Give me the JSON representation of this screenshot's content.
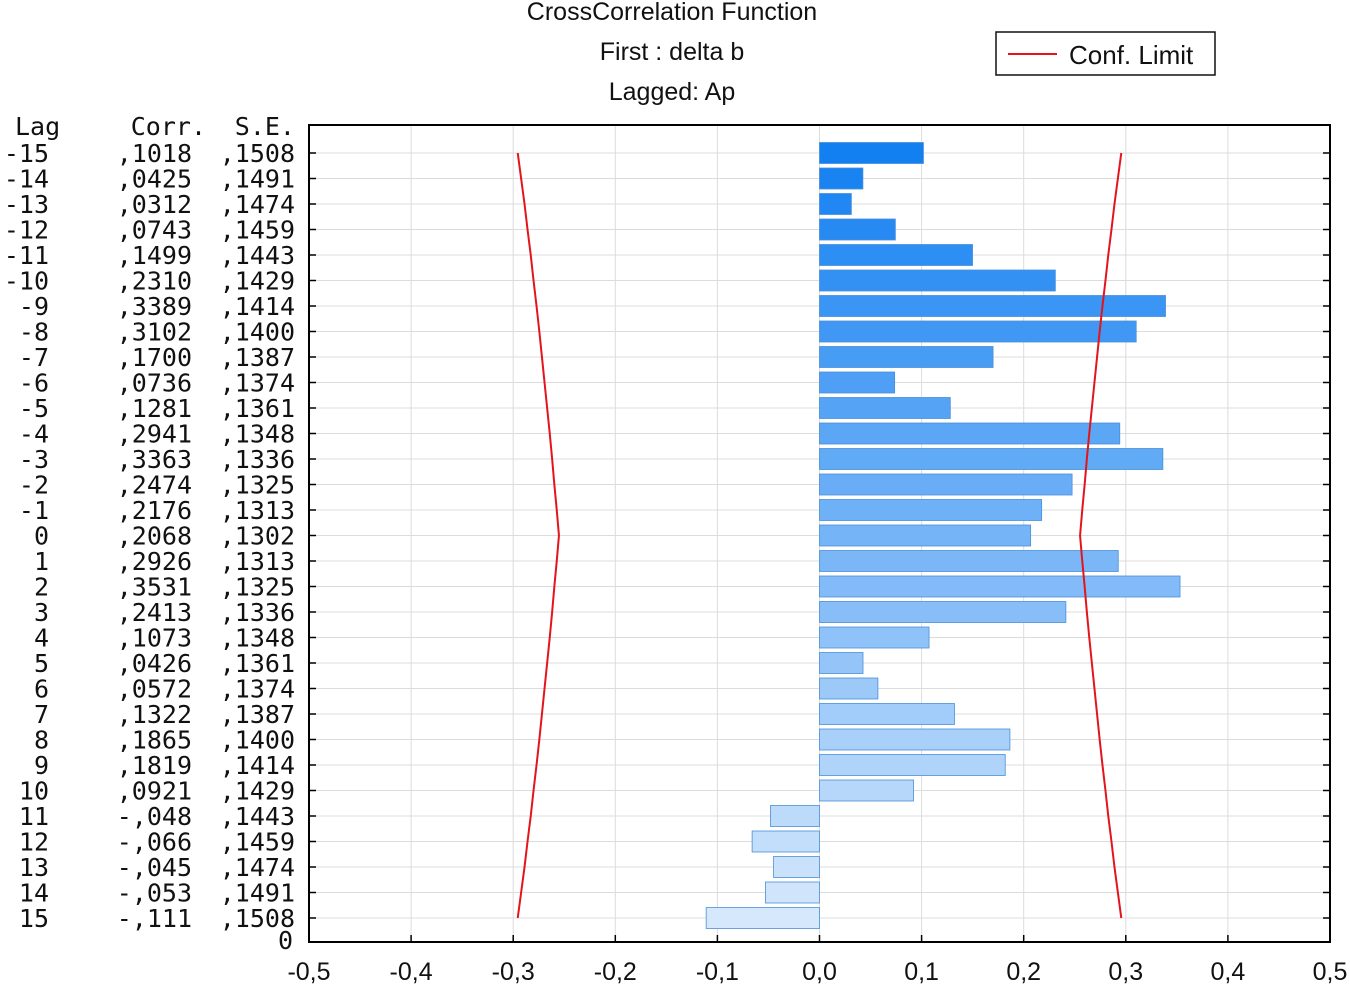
{
  "chart_data": {
    "type": "bar",
    "orientation": "horizontal",
    "title": "CrossCorrelation Function",
    "subtitle_first": "First : delta b",
    "subtitle_lagged": "Lagged: Ap",
    "table_headers": {
      "lag": "Lag",
      "corr": "Corr.",
      "se": "S.E."
    },
    "extra_row_label": "0",
    "rows": [
      {
        "lag": -15,
        "lag_label": "-15",
        "corr": 0.1018,
        "corr_label": ",1018",
        "se": 0.1508,
        "se_label": ",1508"
      },
      {
        "lag": -14,
        "lag_label": "-14",
        "corr": 0.0425,
        "corr_label": ",0425",
        "se": 0.1491,
        "se_label": ",1491"
      },
      {
        "lag": -13,
        "lag_label": "-13",
        "corr": 0.0312,
        "corr_label": ",0312",
        "se": 0.1474,
        "se_label": ",1474"
      },
      {
        "lag": -12,
        "lag_label": "-12",
        "corr": 0.0743,
        "corr_label": ",0743",
        "se": 0.1459,
        "se_label": ",1459"
      },
      {
        "lag": -11,
        "lag_label": "-11",
        "corr": 0.1499,
        "corr_label": ",1499",
        "se": 0.1443,
        "se_label": ",1443"
      },
      {
        "lag": -10,
        "lag_label": "-10",
        "corr": 0.231,
        "corr_label": ",2310",
        "se": 0.1429,
        "se_label": ",1429"
      },
      {
        "lag": -9,
        "lag_label": "-9",
        "corr": 0.3389,
        "corr_label": ",3389",
        "se": 0.1414,
        "se_label": ",1414"
      },
      {
        "lag": -8,
        "lag_label": "-8",
        "corr": 0.3102,
        "corr_label": ",3102",
        "se": 0.14,
        "se_label": ",1400"
      },
      {
        "lag": -7,
        "lag_label": "-7",
        "corr": 0.17,
        "corr_label": ",1700",
        "se": 0.1387,
        "se_label": ",1387"
      },
      {
        "lag": -6,
        "lag_label": "-6",
        "corr": 0.0736,
        "corr_label": ",0736",
        "se": 0.1374,
        "se_label": ",1374"
      },
      {
        "lag": -5,
        "lag_label": "-5",
        "corr": 0.1281,
        "corr_label": ",1281",
        "se": 0.1361,
        "se_label": ",1361"
      },
      {
        "lag": -4,
        "lag_label": "-4",
        "corr": 0.2941,
        "corr_label": ",2941",
        "se": 0.1348,
        "se_label": ",1348"
      },
      {
        "lag": -3,
        "lag_label": "-3",
        "corr": 0.3363,
        "corr_label": ",3363",
        "se": 0.1336,
        "se_label": ",1336"
      },
      {
        "lag": -2,
        "lag_label": "-2",
        "corr": 0.2474,
        "corr_label": ",2474",
        "se": 0.1325,
        "se_label": ",1325"
      },
      {
        "lag": -1,
        "lag_label": "-1",
        "corr": 0.2176,
        "corr_label": ",2176",
        "se": 0.1313,
        "se_label": ",1313"
      },
      {
        "lag": 0,
        "lag_label": "0",
        "corr": 0.2068,
        "corr_label": ",2068",
        "se": 0.1302,
        "se_label": ",1302"
      },
      {
        "lag": 1,
        "lag_label": "1",
        "corr": 0.2926,
        "corr_label": ",2926",
        "se": 0.1313,
        "se_label": ",1313"
      },
      {
        "lag": 2,
        "lag_label": "2",
        "corr": 0.3531,
        "corr_label": ",3531",
        "se": 0.1325,
        "se_label": ",1325"
      },
      {
        "lag": 3,
        "lag_label": "3",
        "corr": 0.2413,
        "corr_label": ",2413",
        "se": 0.1336,
        "se_label": ",1336"
      },
      {
        "lag": 4,
        "lag_label": "4",
        "corr": 0.1073,
        "corr_label": ",1073",
        "se": 0.1348,
        "se_label": ",1348"
      },
      {
        "lag": 5,
        "lag_label": "5",
        "corr": 0.0426,
        "corr_label": ",0426",
        "se": 0.1361,
        "se_label": ",1361"
      },
      {
        "lag": 6,
        "lag_label": "6",
        "corr": 0.0572,
        "corr_label": ",0572",
        "se": 0.1374,
        "se_label": ",1374"
      },
      {
        "lag": 7,
        "lag_label": "7",
        "corr": 0.1322,
        "corr_label": ",1322",
        "se": 0.1387,
        "se_label": ",1387"
      },
      {
        "lag": 8,
        "lag_label": "8",
        "corr": 0.1865,
        "corr_label": ",1865",
        "se": 0.14,
        "se_label": ",1400"
      },
      {
        "lag": 9,
        "lag_label": "9",
        "corr": 0.1819,
        "corr_label": ",1819",
        "se": 0.1414,
        "se_label": ",1414"
      },
      {
        "lag": 10,
        "lag_label": "10",
        "corr": 0.0921,
        "corr_label": ",0921",
        "se": 0.1429,
        "se_label": ",1429"
      },
      {
        "lag": 11,
        "lag_label": "11",
        "corr": -0.048,
        "corr_label": "-,048",
        "se": 0.1443,
        "se_label": ",1443"
      },
      {
        "lag": 12,
        "lag_label": "12",
        "corr": -0.066,
        "corr_label": "-,066",
        "se": 0.1459,
        "se_label": ",1459"
      },
      {
        "lag": 13,
        "lag_label": "13",
        "corr": -0.045,
        "corr_label": "-,045",
        "se": 0.1474,
        "se_label": ",1474"
      },
      {
        "lag": 14,
        "lag_label": "14",
        "corr": -0.053,
        "corr_label": "-,053",
        "se": 0.1491,
        "se_label": ",1491"
      },
      {
        "lag": 15,
        "lag_label": "15",
        "corr": -0.111,
        "corr_label": "-,111",
        "se": 0.1508,
        "se_label": ",1508"
      }
    ],
    "conf_limit_factor": 1.96,
    "xlim": [
      -0.5,
      0.5
    ],
    "x_ticks": [
      -0.5,
      -0.4,
      -0.3,
      -0.2,
      -0.1,
      0.0,
      0.1,
      0.2,
      0.3,
      0.4,
      0.5
    ],
    "x_tick_labels": [
      "-0,5",
      "-0,4",
      "-0,3",
      "-0,2",
      "-0,1",
      "0,0",
      "0,1",
      "0,2",
      "0,3",
      "0,4",
      "0,5"
    ],
    "grid": true,
    "legend": {
      "label": "Conf. Limit",
      "placement": "top-right",
      "color": "#e3151b"
    },
    "colors": {
      "bar_dark": "#1380f2",
      "bar_light": "#d6e8fb",
      "bar_edge": "#4a8fd8",
      "conf_line": "#e3151b",
      "grid": "#dcdcdc",
      "axis": "#000000"
    }
  }
}
